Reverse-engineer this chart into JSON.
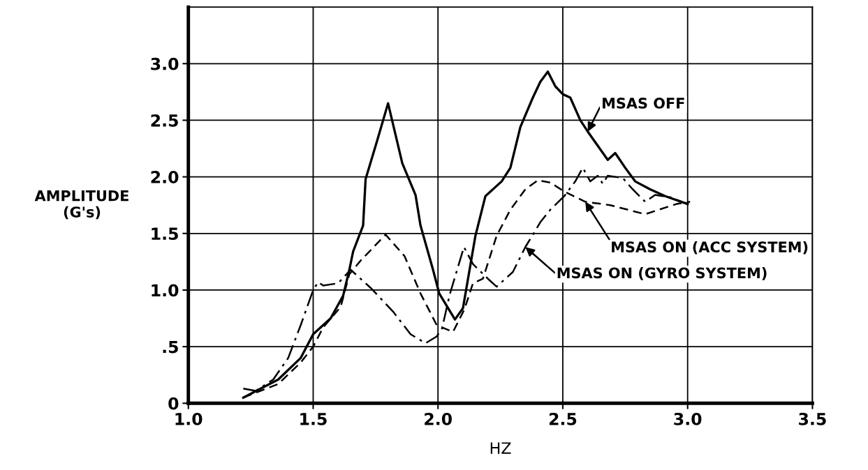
{
  "chart_data": {
    "type": "line",
    "xlabel": "HZ",
    "ylabel": "AMPLITUDE\n(G's)",
    "xlim": [
      1.0,
      3.5
    ],
    "ylim": [
      0,
      3.5
    ],
    "xticks": [
      {
        "value": 1.0,
        "label": "1.0"
      },
      {
        "value": 1.5,
        "label": "1.5"
      },
      {
        "value": 2.0,
        "label": "2.0"
      },
      {
        "value": 2.5,
        "label": "2.5"
      },
      {
        "value": 3.0,
        "label": "3.0"
      },
      {
        "value": 3.5,
        "label": "3.5"
      }
    ],
    "yticks": [
      0,
      {
        "value": 0.5,
        "label": ".5"
      },
      {
        "value": 1.0,
        "label": "1.0"
      },
      {
        "value": 1.5,
        "label": "1.5"
      },
      {
        "value": 2.0,
        "label": "2.0"
      },
      {
        "value": 2.5,
        "label": "2.5"
      },
      {
        "value": 3.0,
        "label": "3.0"
      }
    ],
    "grid": true,
    "legend": false,
    "marker": "none",
    "series": [
      {
        "name": "MSAS OFF",
        "color": "#000000",
        "line_style": "solid",
        "x": [
          1.22,
          1.36,
          1.45,
          1.5,
          1.57,
          1.62,
          1.645,
          1.66,
          1.7,
          1.71,
          1.755,
          1.8,
          1.857,
          1.91,
          1.93,
          1.98,
          2.005,
          2.068,
          2.1,
          2.15,
          2.19,
          2.255,
          2.29,
          2.33,
          2.38,
          2.41,
          2.44,
          2.47,
          2.5,
          2.53,
          2.57,
          2.6,
          2.68,
          2.71,
          2.75,
          2.79,
          2.85,
          2.91,
          3.0
        ],
        "values": [
          0.05,
          0.21,
          0.4,
          0.61,
          0.75,
          0.95,
          1.18,
          1.34,
          1.57,
          1.98,
          2.31,
          2.65,
          2.12,
          1.84,
          1.57,
          1.18,
          0.97,
          0.74,
          0.84,
          1.48,
          1.83,
          1.96,
          2.08,
          2.44,
          2.7,
          2.84,
          2.93,
          2.8,
          2.73,
          2.7,
          2.5,
          2.4,
          2.15,
          2.21,
          2.08,
          1.96,
          1.89,
          1.83,
          1.76
        ]
      },
      {
        "name": "MSAS ON (ACC SYSTEM)",
        "color": "#000000",
        "line_style": "dashed",
        "x": [
          1.22,
          1.36,
          1.45,
          1.5,
          1.54,
          1.61,
          1.645,
          1.69,
          1.79,
          1.866,
          1.93,
          1.995,
          2.06,
          2.106,
          2.14,
          2.18,
          2.235,
          2.29,
          2.35,
          2.4,
          2.45,
          2.506,
          2.59,
          2.69,
          2.83,
          2.955,
          3.01
        ],
        "values": [
          0.05,
          0.17,
          0.36,
          0.5,
          0.67,
          0.85,
          1.14,
          1.26,
          1.49,
          1.3,
          0.97,
          0.69,
          0.63,
          0.83,
          1.06,
          1.1,
          1.48,
          1.71,
          1.89,
          1.97,
          1.95,
          1.87,
          1.78,
          1.75,
          1.67,
          1.76,
          1.78
        ]
      },
      {
        "name": "MSAS ON (GYRO SYSTEM)",
        "color": "#000000",
        "line_style": "dashdot",
        "x": [
          1.22,
          1.27,
          1.34,
          1.4,
          1.45,
          1.5,
          1.52,
          1.54,
          1.6,
          1.65,
          1.73,
          1.82,
          1.89,
          1.95,
          1.995,
          2.016,
          2.047,
          2.104,
          2.14,
          2.2,
          2.235,
          2.3,
          2.35,
          2.386,
          2.41,
          2.45,
          2.506,
          2.55,
          2.58,
          2.61,
          2.64,
          2.66,
          2.68,
          2.74,
          2.78,
          2.83,
          2.87,
          2.93,
          3.0
        ],
        "values": [
          0.13,
          0.11,
          0.21,
          0.4,
          0.69,
          1.0,
          1.07,
          1.04,
          1.06,
          1.18,
          1.02,
          0.81,
          0.61,
          0.53,
          0.59,
          0.66,
          0.96,
          1.38,
          1.23,
          1.1,
          1.03,
          1.16,
          1.38,
          1.51,
          1.6,
          1.71,
          1.83,
          1.96,
          2.08,
          1.96,
          2.01,
          1.94,
          2.01,
          1.99,
          1.89,
          1.78,
          1.84,
          1.82,
          1.76
        ]
      }
    ]
  }
}
